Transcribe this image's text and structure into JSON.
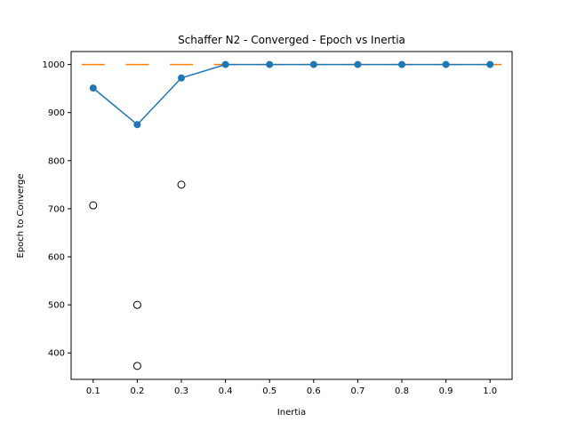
{
  "chart_data": {
    "type": "line",
    "title": "Schaffer N2 - Converged - Epoch vs Inertia",
    "xlabel": "Inertia",
    "ylabel": "Epoch to Converge",
    "x_ticks": [
      "0.1",
      "0.2",
      "0.3",
      "0.4",
      "0.5",
      "0.6",
      "0.7",
      "0.8",
      "0.9",
      "1.0"
    ],
    "y_ticks": [
      400,
      500,
      600,
      700,
      800,
      900,
      1000
    ],
    "ylim": [
      345,
      1027
    ],
    "xlim": [
      0.05,
      1.05
    ],
    "grid": false,
    "series": [
      {
        "kind": "line-markers",
        "color": "#1f77b4",
        "x": [
          0.1,
          0.2,
          0.3,
          0.4,
          0.5,
          0.6,
          0.7,
          0.8,
          0.9,
          1.0
        ],
        "y": [
          951,
          875,
          972,
          1000,
          1000,
          1000,
          1000,
          1000,
          1000,
          1000
        ]
      },
      {
        "kind": "box-median",
        "color": "#ff7f0e",
        "x": [
          0.1,
          0.2,
          0.3,
          0.4,
          0.5,
          0.6,
          0.7,
          0.8,
          0.9,
          1.0
        ],
        "y": [
          1000,
          1000,
          1000,
          1000,
          1000,
          1000,
          1000,
          1000,
          1000,
          1000
        ]
      },
      {
        "kind": "outliers",
        "color": "#000000",
        "points": [
          {
            "x": 0.1,
            "y": 707
          },
          {
            "x": 0.2,
            "y": 500
          },
          {
            "x": 0.2,
            "y": 373
          },
          {
            "x": 0.3,
            "y": 750
          }
        ]
      }
    ]
  }
}
